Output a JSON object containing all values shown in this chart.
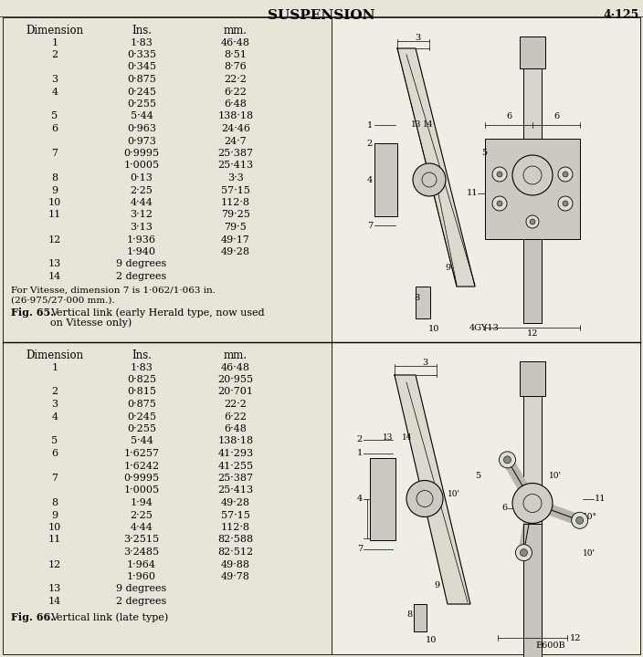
{
  "title": "SUSPENSION",
  "page_num": "4·125",
  "bg_color": "#e8e4d8",
  "fig65": {
    "header": [
      "Dimension",
      "Ins.",
      "mm."
    ],
    "rows": [
      [
        "1",
        "1·83",
        "46·48"
      ],
      [
        "2",
        "0·335",
        "8·51"
      ],
      [
        "",
        "0·345",
        "8·76"
      ],
      [
        "3",
        "0·875",
        "22·2"
      ],
      [
        "4",
        "0·245",
        "6·22"
      ],
      [
        "",
        "0·255",
        "6·48"
      ],
      [
        "5",
        "5·44",
        "138·18"
      ],
      [
        "6",
        "0·963",
        "24·46"
      ],
      [
        "",
        "0·973",
        "24·7"
      ],
      [
        "7",
        "0·9995",
        "25·387"
      ],
      [
        "",
        "1·0005",
        "25·413"
      ],
      [
        "8",
        "0·13",
        "3·3"
      ],
      [
        "9",
        "2·25",
        "57·15"
      ],
      [
        "10",
        "4·44",
        "112·8"
      ],
      [
        "11",
        "3·12",
        "79·25"
      ],
      [
        "",
        "3·13",
        "79·5"
      ],
      [
        "12",
        "1·936",
        "49·17"
      ],
      [
        "",
        "1·940",
        "49·28"
      ],
      [
        "13",
        "9 degrees",
        ""
      ],
      [
        "14",
        "2 degrees",
        ""
      ]
    ],
    "note1": "For Vitesse, dimension 7 is 1·062/1·063 in.",
    "note2": "(26·975/27·000 mm.).",
    "fig_label": "Fig. 65.",
    "fig_desc1": "Vertical link (early Herald type, now used",
    "fig_desc2": "on Vitesse only)",
    "drawing_ref": "4GY13"
  },
  "fig66": {
    "header": [
      "Dimension",
      "Ins.",
      "mm."
    ],
    "rows": [
      [
        "1",
        "1·83",
        "46·48"
      ],
      [
        "",
        "0·825",
        "20·955"
      ],
      [
        "2",
        "0·815",
        "20·701"
      ],
      [
        "3",
        "0·875",
        "22·2"
      ],
      [
        "4",
        "0·245",
        "6·22"
      ],
      [
        "",
        "0·255",
        "6·48"
      ],
      [
        "5",
        "5·44",
        "138·18"
      ],
      [
        "6",
        "1·6257",
        "41·293"
      ],
      [
        "",
        "1·6242",
        "41·255"
      ],
      [
        "7",
        "0·9995",
        "25·387"
      ],
      [
        "",
        "1·0005",
        "25·413"
      ],
      [
        "8",
        "1·94",
        "49·28"
      ],
      [
        "9",
        "2·25",
        "57·15"
      ],
      [
        "10",
        "4·44",
        "112·8"
      ],
      [
        "11",
        "3·2515",
        "82·588"
      ],
      [
        "",
        "3·2485",
        "82·512"
      ],
      [
        "12",
        "1·964",
        "49·88"
      ],
      [
        "",
        "1·960",
        "49·78"
      ],
      [
        "13",
        "9 degrees",
        ""
      ],
      [
        "14",
        "2 degrees",
        ""
      ]
    ],
    "fig_label": "Fig. 66.",
    "fig_desc": "Vertical link (late type)",
    "drawing_ref": "E600B"
  }
}
